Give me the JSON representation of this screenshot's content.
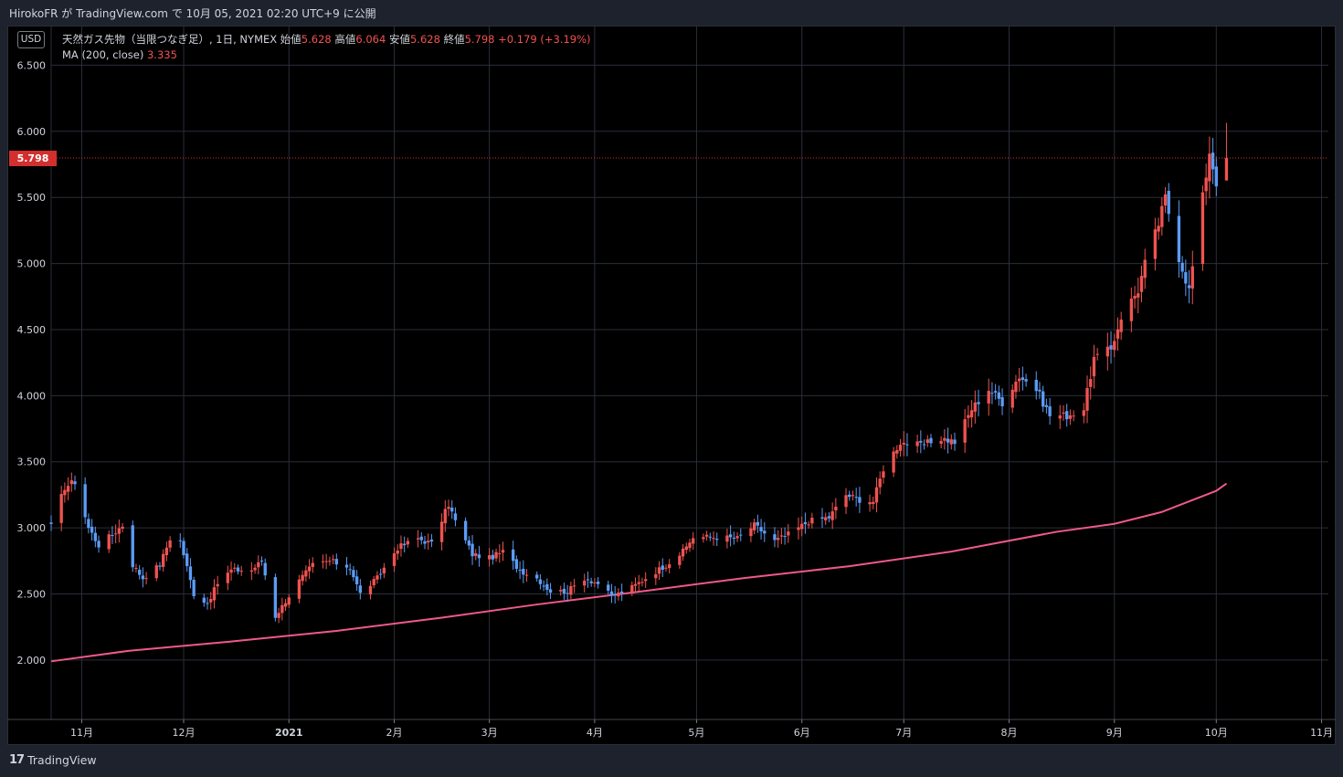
{
  "caption": "HirokoFR が TradingView.com で 10月 05, 2021 02:20 UTC+9 に公開",
  "currency": "USD",
  "legend": {
    "symbol": "天然ガス先物（当限つなぎ足）, 1日, NYMEX",
    "open_label": "始値",
    "open": "5.628",
    "high_label": "高値",
    "high": "6.064",
    "low_label": "安値",
    "low": "5.628",
    "close_label": "終値",
    "close": "5.798",
    "change": "+0.179 (+3.19%)",
    "ma_label": "MA (200, close)",
    "ma_value": "3.335"
  },
  "last_price_tag": "5.798",
  "footer": {
    "logo_mark": "17",
    "brand": "TradingView"
  },
  "colors": {
    "up": "#ef5350",
    "down": "#5b9cf6",
    "ma": "#f0598a",
    "grid": "#2a2e39",
    "price_line": "#d32f2f"
  },
  "chart_data": {
    "type": "candlestick",
    "title": "天然ガス先物（当限つなぎ足）, 1日, NYMEX",
    "y_ticks": [
      "6.500",
      "6.000",
      "5.500",
      "5.000",
      "4.500",
      "4.000",
      "3.500",
      "3.000",
      "2.500",
      "2.000"
    ],
    "ylim": [
      1.55,
      6.8
    ],
    "x_ticks": [
      {
        "label": "11月",
        "date": "2020-11-01"
      },
      {
        "label": "12月",
        "date": "2020-12-01"
      },
      {
        "label": "2021",
        "date": "2021-01-01"
      },
      {
        "label": "2月",
        "date": "2021-02-01"
      },
      {
        "label": "3月",
        "date": "2021-03-01"
      },
      {
        "label": "4月",
        "date": "2021-04-01"
      },
      {
        "label": "5月",
        "date": "2021-05-01"
      },
      {
        "label": "6月",
        "date": "2021-06-01"
      },
      {
        "label": "7月",
        "date": "2021-07-01"
      },
      {
        "label": "8月",
        "date": "2021-08-01"
      },
      {
        "label": "9月",
        "date": "2021-09-01"
      },
      {
        "label": "10月",
        "date": "2021-10-01"
      },
      {
        "label": "11月",
        "date": "2021-11-01"
      }
    ],
    "xlim": [
      "2020-10-23",
      "2021-11-03"
    ],
    "ohlc_anchors": [
      {
        "date": "2020-10-23",
        "close": 3.01
      },
      {
        "date": "2020-10-27",
        "close": 3.31
      },
      {
        "date": "2020-10-30",
        "close": 3.35
      },
      {
        "date": "2020-11-03",
        "close": 3.0
      },
      {
        "date": "2020-11-06",
        "close": 2.87
      },
      {
        "date": "2020-11-10",
        "close": 2.95
      },
      {
        "date": "2020-11-13",
        "close": 3.02
      },
      {
        "date": "2020-11-16",
        "close": 2.72
      },
      {
        "date": "2020-11-19",
        "close": 2.62
      },
      {
        "date": "2020-11-24",
        "close": 2.72
      },
      {
        "date": "2020-11-27",
        "close": 2.92
      },
      {
        "date": "2020-11-30",
        "close": 2.9
      },
      {
        "date": "2020-12-04",
        "close": 2.5
      },
      {
        "date": "2020-12-08",
        "close": 2.43
      },
      {
        "date": "2020-12-11",
        "close": 2.58
      },
      {
        "date": "2020-12-15",
        "close": 2.68
      },
      {
        "date": "2020-12-21",
        "close": 2.68
      },
      {
        "date": "2020-12-24",
        "close": 2.75
      },
      {
        "date": "2020-12-28",
        "close": 2.33
      },
      {
        "date": "2021-01-04",
        "close": 2.6
      },
      {
        "date": "2021-01-08",
        "close": 2.72
      },
      {
        "date": "2021-01-13",
        "close": 2.75
      },
      {
        "date": "2021-01-19",
        "close": 2.7
      },
      {
        "date": "2021-01-22",
        "close": 2.5
      },
      {
        "date": "2021-01-27",
        "close": 2.62
      },
      {
        "date": "2021-02-02",
        "close": 2.85
      },
      {
        "date": "2021-02-08",
        "close": 2.92
      },
      {
        "date": "2021-02-12",
        "close": 2.88
      },
      {
        "date": "2021-02-17",
        "close": 3.18
      },
      {
        "date": "2021-02-19",
        "close": 3.05
      },
      {
        "date": "2021-02-24",
        "close": 2.8
      },
      {
        "date": "2021-03-01",
        "close": 2.77
      },
      {
        "date": "2021-03-05",
        "close": 2.82
      },
      {
        "date": "2021-03-10",
        "close": 2.68
      },
      {
        "date": "2021-03-15",
        "close": 2.62
      },
      {
        "date": "2021-03-19",
        "close": 2.52
      },
      {
        "date": "2021-03-24",
        "close": 2.52
      },
      {
        "date": "2021-03-29",
        "close": 2.62
      },
      {
        "date": "2021-04-02",
        "close": 2.58
      },
      {
        "date": "2021-04-06",
        "close": 2.48
      },
      {
        "date": "2021-04-12",
        "close": 2.55
      },
      {
        "date": "2021-04-16",
        "close": 2.62
      },
      {
        "date": "2021-04-22",
        "close": 2.72
      },
      {
        "date": "2021-04-27",
        "close": 2.82
      },
      {
        "date": "2021-04-30",
        "close": 2.93
      },
      {
        "date": "2021-05-07",
        "close": 2.93
      },
      {
        "date": "2021-05-13",
        "close": 2.92
      },
      {
        "date": "2021-05-18",
        "close": 3.02
      },
      {
        "date": "2021-05-24",
        "close": 2.9
      },
      {
        "date": "2021-05-28",
        "close": 2.95
      },
      {
        "date": "2021-06-03",
        "close": 3.05
      },
      {
        "date": "2021-06-09",
        "close": 3.08
      },
      {
        "date": "2021-06-14",
        "close": 3.25
      },
      {
        "date": "2021-06-17",
        "close": 3.22
      },
      {
        "date": "2021-06-22",
        "close": 3.2
      },
      {
        "date": "2021-06-25",
        "close": 3.45
      },
      {
        "date": "2021-06-30",
        "close": 3.65
      },
      {
        "date": "2021-07-06",
        "close": 3.62
      },
      {
        "date": "2021-07-12",
        "close": 3.68
      },
      {
        "date": "2021-07-16",
        "close": 3.65
      },
      {
        "date": "2021-07-21",
        "close": 3.9
      },
      {
        "date": "2021-07-26",
        "close": 4.05
      },
      {
        "date": "2021-07-30",
        "close": 3.95
      },
      {
        "date": "2021-08-04",
        "close": 4.15
      },
      {
        "date": "2021-08-09",
        "close": 4.05
      },
      {
        "date": "2021-08-13",
        "close": 3.85
      },
      {
        "date": "2021-08-18",
        "close": 3.85
      },
      {
        "date": "2021-08-23",
        "close": 3.9
      },
      {
        "date": "2021-08-26",
        "close": 4.28
      },
      {
        "date": "2021-08-31",
        "close": 4.35
      },
      {
        "date": "2021-09-03",
        "close": 4.6
      },
      {
        "date": "2021-09-08",
        "close": 4.8
      },
      {
        "date": "2021-09-10",
        "close": 5.0
      },
      {
        "date": "2021-09-14",
        "close": 5.3
      },
      {
        "date": "2021-09-16",
        "close": 5.5
      },
      {
        "date": "2021-09-20",
        "close": 5.05
      },
      {
        "date": "2021-09-23",
        "close": 4.8
      },
      {
        "date": "2021-09-27",
        "close": 5.5
      },
      {
        "date": "2021-09-29",
        "close": 5.85
      },
      {
        "date": "2021-10-01",
        "close": 5.62
      },
      {
        "date": "2021-10-04",
        "close": 5.798
      }
    ],
    "last_candle": {
      "date": "2021-10-04",
      "open": 5.628,
      "high": 6.064,
      "low": 5.628,
      "close": 5.798
    },
    "ma200": [
      {
        "date": "2020-10-23",
        "value": 1.99
      },
      {
        "date": "2020-11-15",
        "value": 2.07
      },
      {
        "date": "2020-12-15",
        "value": 2.14
      },
      {
        "date": "2021-01-15",
        "value": 2.22
      },
      {
        "date": "2021-02-15",
        "value": 2.32
      },
      {
        "date": "2021-03-15",
        "value": 2.42
      },
      {
        "date": "2021-04-15",
        "value": 2.52
      },
      {
        "date": "2021-05-15",
        "value": 2.62
      },
      {
        "date": "2021-06-15",
        "value": 2.71
      },
      {
        "date": "2021-07-15",
        "value": 2.82
      },
      {
        "date": "2021-08-15",
        "value": 2.97
      },
      {
        "date": "2021-09-01",
        "value": 3.03
      },
      {
        "date": "2021-09-15",
        "value": 3.12
      },
      {
        "date": "2021-10-01",
        "value": 3.28
      },
      {
        "date": "2021-10-04",
        "value": 3.335
      }
    ]
  }
}
